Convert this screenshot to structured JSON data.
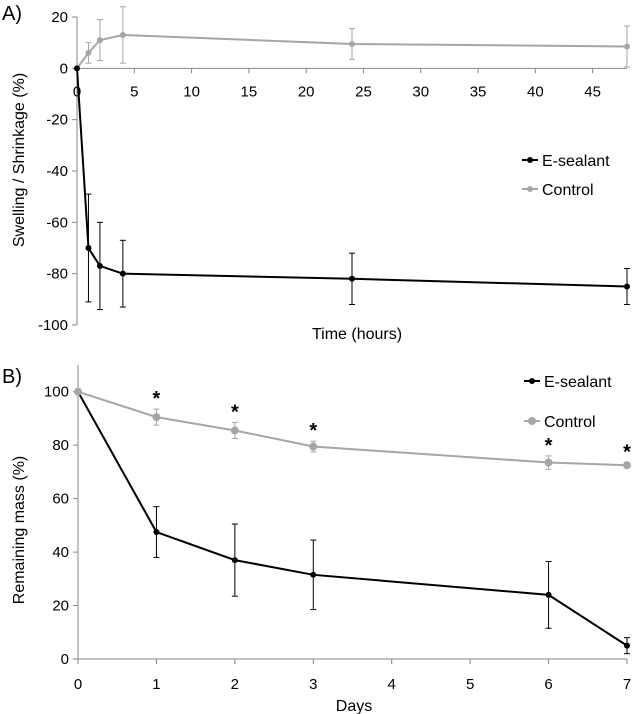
{
  "chart_data": [
    {
      "panel": "A)",
      "type": "line",
      "title": "",
      "xlabel": "Time (hours)",
      "ylabel": "Swelling / Shrinkage (%)",
      "xlim": [
        0,
        48
      ],
      "ylim": [
        -100,
        20
      ],
      "x_ticks": [
        0,
        5,
        10,
        15,
        20,
        25,
        30,
        35,
        40,
        45
      ],
      "y_ticks": [
        20,
        0,
        -20,
        -40,
        -60,
        -80,
        -100
      ],
      "grid": false,
      "legend_position": "right",
      "series": [
        {
          "name": "E-sealant",
          "color": "#000000",
          "x": [
            0,
            1,
            2,
            4,
            24,
            48
          ],
          "y": [
            0,
            -70,
            -77,
            -80,
            -82,
            -85
          ],
          "err": [
            0,
            21,
            17,
            13,
            10,
            7
          ]
        },
        {
          "name": "Control",
          "color": "#a6a6a6",
          "x": [
            0,
            1,
            2,
            4,
            24,
            48
          ],
          "y": [
            0,
            6,
            11,
            13,
            9.5,
            8.5
          ],
          "err": [
            0,
            4,
            8,
            11,
            6,
            8
          ]
        }
      ]
    },
    {
      "panel": "B)",
      "type": "line",
      "title": "",
      "xlabel": "Days",
      "ylabel": "Remaining mass (%)",
      "xlim": [
        0,
        7
      ],
      "ylim": [
        0,
        110
      ],
      "x_ticks": [
        0,
        1,
        2,
        3,
        4,
        5,
        6,
        7
      ],
      "y_ticks": [
        0,
        20,
        40,
        60,
        80,
        100
      ],
      "grid": false,
      "legend_position": "top-right",
      "significance_marker": "*",
      "significant_x": [
        1,
        2,
        3,
        6,
        7
      ],
      "series": [
        {
          "name": "E-sealant",
          "color": "#000000",
          "x": [
            0,
            1,
            2,
            3,
            6,
            7
          ],
          "y": [
            100,
            47.5,
            37,
            31.5,
            24,
            5
          ],
          "err": [
            0,
            9.5,
            13.5,
            13,
            12.5,
            3
          ]
        },
        {
          "name": "Control",
          "color": "#a6a6a6",
          "x": [
            0,
            1,
            2,
            3,
            6,
            7
          ],
          "y": [
            100,
            90.5,
            85.5,
            79.5,
            73.5,
            72.5
          ],
          "err": [
            0,
            3,
            3,
            2,
            2.5,
            1
          ]
        }
      ]
    }
  ]
}
